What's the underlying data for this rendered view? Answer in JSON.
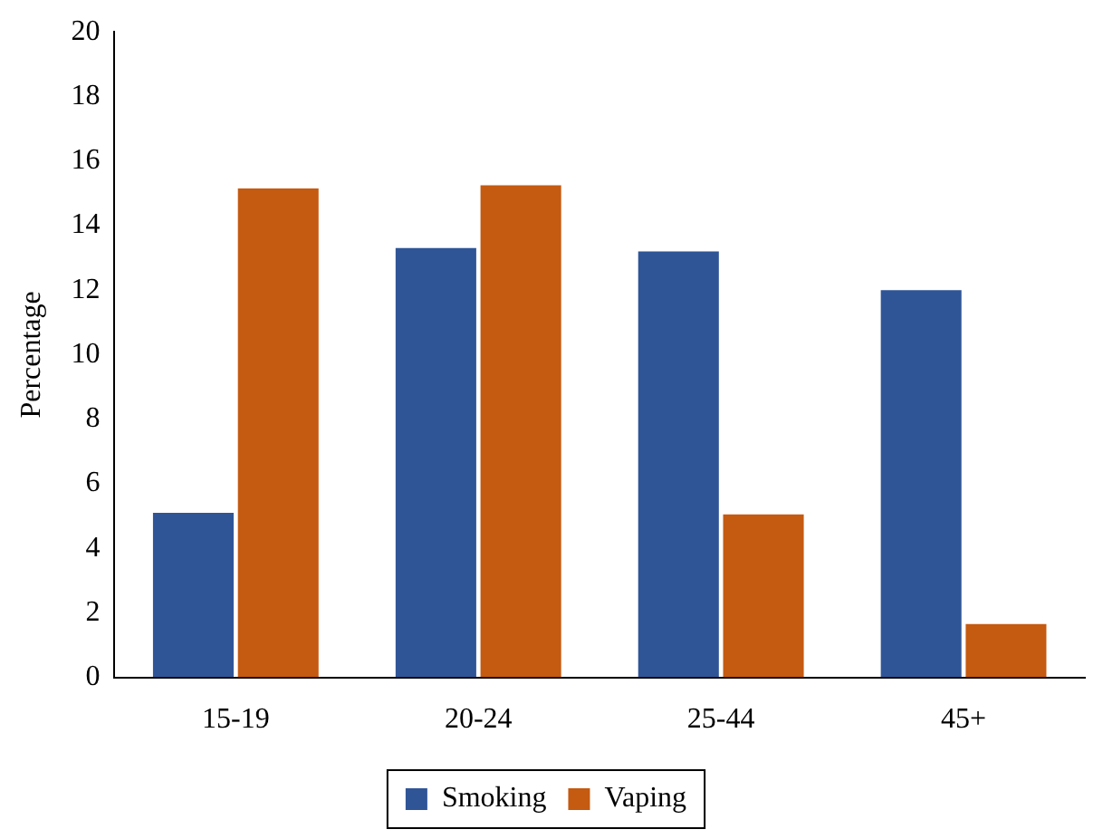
{
  "chart_data": {
    "type": "bar",
    "ylabel": "Percentage",
    "categories": [
      "15-19",
      "20-24",
      "25-44",
      "45+"
    ],
    "series": [
      {
        "name": "Smoking",
        "color": "#2f5597",
        "values": [
          5.1,
          13.3,
          13.2,
          12.0
        ]
      },
      {
        "name": "Vaping",
        "color": "#c55a11",
        "values": [
          15.15,
          15.25,
          5.05,
          1.65
        ]
      }
    ],
    "ylim": [
      0,
      20
    ],
    "yticks": [
      0,
      2,
      4,
      6,
      8,
      10,
      12,
      14,
      16,
      18,
      20
    ],
    "grid": false,
    "legend": "bottom"
  }
}
